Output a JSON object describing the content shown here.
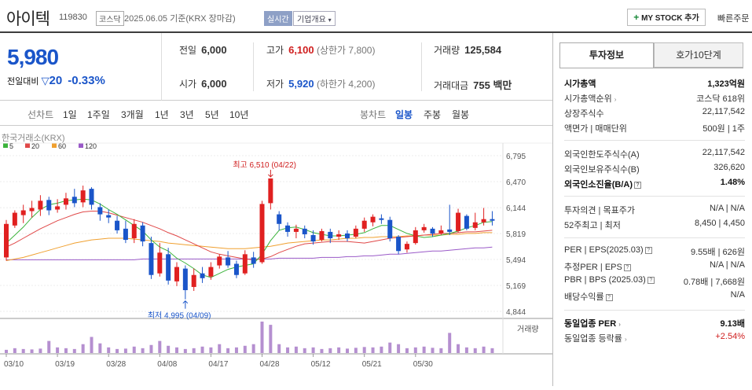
{
  "header": {
    "stock_name": "아이텍",
    "stock_code": "119830",
    "market": "코스닥",
    "date_text": "2025.06.05 기준(KRX 장마감)",
    "realtime_label": "실시간",
    "company_overview": "기업개요",
    "my_stock_button": "MY STOCK 추가",
    "quick_order": "빠른주문"
  },
  "price": {
    "current": "5,980",
    "change_label": "전일대비",
    "change_value": "20",
    "change_rate": "-0.33%"
  },
  "summary": {
    "prev_label": "전일",
    "prev_value": "6,000",
    "high_label": "고가",
    "high_value": "6,100",
    "upper_limit": "(상한가 7,800)",
    "volume_label": "거래량",
    "volume_value": "125,584",
    "open_label": "시가",
    "open_value": "6,000",
    "low_label": "저가",
    "low_value": "5,920",
    "lower_limit": "(하한가 4,200)",
    "amount_label": "거래대금",
    "amount_value": "755 백만"
  },
  "chart_tabs": {
    "line_label": "선차트",
    "line_periods": [
      "1일",
      "1주일",
      "3개월",
      "1년",
      "3년",
      "5년",
      "10년"
    ],
    "candle_label": "봉차트",
    "candle_periods": [
      "일봉",
      "주봉",
      "월봉"
    ],
    "selected": "일봉"
  },
  "chart_data": {
    "type": "candlestick",
    "exchange_label": "한국거래소(KRX)",
    "legend": [
      {
        "name": "5",
        "color": "#3bb33b"
      },
      {
        "name": "20",
        "color": "#e04848"
      },
      {
        "name": "60",
        "color": "#f0a030"
      },
      {
        "name": "120",
        "color": "#9a5ac8"
      }
    ],
    "y_ticks": [
      "6,795",
      "6,470",
      "6,144",
      "5,819",
      "5,494",
      "5,169",
      "4,844"
    ],
    "y_range": [
      4844,
      6795
    ],
    "x_labels": [
      "03/10",
      "03/19",
      "03/28",
      "04/08",
      "04/17",
      "04/28",
      "05/12",
      "05/21",
      "05/30"
    ],
    "x_label_index": [
      0,
      6,
      12,
      18,
      24,
      30,
      36,
      42,
      48
    ],
    "high_annotation": "최고 6,510 (04/22)",
    "low_annotation": "최저 4,995 (04/09)",
    "volume_label": "거래량",
    "candles": [
      [
        5520,
        5940,
        5480,
        5990
      ],
      [
        5920,
        6080,
        5890,
        6110
      ],
      [
        6050,
        6110,
        5950,
        6180
      ],
      [
        6100,
        6140,
        6020,
        6230
      ],
      [
        6120,
        6230,
        6040,
        6300
      ],
      [
        6240,
        6110,
        6050,
        6280
      ],
      [
        6120,
        6160,
        6080,
        6250
      ],
      [
        6180,
        6260,
        6120,
        6330
      ],
      [
        6280,
        6200,
        6150,
        6380
      ],
      [
        6210,
        6360,
        6150,
        6420
      ],
      [
        6380,
        6180,
        6120,
        6400
      ],
      [
        6150,
        6060,
        5980,
        6200
      ],
      [
        6050,
        6020,
        5950,
        6120
      ],
      [
        5980,
        5860,
        5820,
        6040
      ],
      [
        5880,
        5740,
        5700,
        5980
      ],
      [
        5760,
        5940,
        5700,
        6000
      ],
      [
        5920,
        5720,
        5660,
        5960
      ],
      [
        5700,
        5300,
        5250,
        5780
      ],
      [
        5320,
        5580,
        5280,
        5700
      ],
      [
        5560,
        5230,
        5180,
        5640
      ],
      [
        5220,
        5400,
        5160,
        5460
      ],
      [
        5380,
        5110,
        4995,
        5420
      ],
      [
        5150,
        5300,
        5100,
        5380
      ],
      [
        5320,
        5260,
        5200,
        5400
      ],
      [
        5280,
        5400,
        5240,
        5460
      ],
      [
        5420,
        5530,
        5380,
        5560
      ],
      [
        5520,
        5420,
        5390,
        5600
      ],
      [
        5440,
        5300,
        5260,
        5480
      ],
      [
        5320,
        5560,
        5300,
        5610
      ],
      [
        5520,
        5440,
        5390,
        5590
      ],
      [
        5460,
        6190,
        5440,
        6230
      ],
      [
        6200,
        6510,
        6120,
        6510
      ],
      [
        6060,
        5940,
        5860,
        6100
      ],
      [
        5920,
        5840,
        5780,
        5960
      ],
      [
        5840,
        5880,
        5760,
        5930
      ],
      [
        5880,
        5810,
        5760,
        5920
      ],
      [
        5800,
        5720,
        5680,
        5860
      ],
      [
        5740,
        5850,
        5720,
        5880
      ],
      [
        5840,
        5760,
        5700,
        5880
      ],
      [
        5780,
        5810,
        5740,
        5860
      ],
      [
        5820,
        5760,
        5720,
        5860
      ],
      [
        5780,
        5880,
        5760,
        5920
      ],
      [
        5880,
        5980,
        5840,
        6020
      ],
      [
        5960,
        6030,
        5910,
        6060
      ],
      [
        6010,
        5990,
        5940,
        6060
      ],
      [
        5990,
        5760,
        5720,
        6030
      ],
      [
        5780,
        5600,
        5560,
        5800
      ],
      [
        5620,
        5690,
        5580,
        5720
      ],
      [
        5700,
        5860,
        5680,
        5900
      ],
      [
        5860,
        5900,
        5830,
        5940
      ],
      [
        5880,
        5820,
        5780,
        5900
      ],
      [
        5820,
        5860,
        5800,
        5920
      ],
      [
        5870,
        5840,
        5800,
        6180
      ],
      [
        5850,
        6080,
        5830,
        6130
      ],
      [
        6040,
        5880,
        5860,
        6060
      ],
      [
        5890,
        5960,
        5860,
        6080
      ],
      [
        5960,
        6000,
        5920,
        6140
      ],
      [
        6000,
        5980,
        5920,
        6100
      ]
    ],
    "volumes": [
      8,
      12,
      10,
      9,
      11,
      30,
      14,
      12,
      10,
      22,
      40,
      24,
      14,
      10,
      11,
      16,
      12,
      20,
      30,
      18,
      14,
      10,
      12,
      16,
      14,
      22,
      12,
      14,
      18,
      22,
      78,
      70,
      22,
      14,
      16,
      12,
      14,
      10,
      12,
      14,
      11,
      13,
      15,
      14,
      16,
      26,
      22,
      12,
      14,
      16,
      13,
      12,
      50,
      22,
      14,
      12,
      16,
      12
    ],
    "ma5": [
      5700,
      5800,
      5900,
      6020,
      6120,
      6180,
      6200,
      6230,
      6240,
      6250,
      6240,
      6190,
      6120,
      6060,
      5990,
      5920,
      5850,
      5740,
      5650,
      5600,
      5510,
      5450,
      5380,
      5300,
      5270,
      5320,
      5370,
      5400,
      5420,
      5440,
      5560,
      5730,
      5860,
      5890,
      5900,
      5870,
      5830,
      5810,
      5790,
      5790,
      5800,
      5810,
      5830,
      5880,
      5920,
      5920,
      5870,
      5820,
      5790,
      5770,
      5780,
      5800,
      5820,
      5850,
      5890,
      5920,
      5960,
      5970
    ],
    "ma20": [
      5650,
      5700,
      5760,
      5820,
      5880,
      5930,
      5980,
      6020,
      6060,
      6090,
      6100,
      6100,
      6080,
      6050,
      6020,
      5990,
      5960,
      5920,
      5880,
      5830,
      5790,
      5740,
      5690,
      5640,
      5590,
      5560,
      5540,
      5520,
      5500,
      5490,
      5500,
      5530,
      5580,
      5620,
      5660,
      5690,
      5700,
      5710,
      5720,
      5720,
      5720,
      5710,
      5700,
      5720,
      5740,
      5760,
      5770,
      5780,
      5790,
      5800,
      5810,
      5820,
      5820,
      5830,
      5840,
      5840,
      5850,
      5860
    ],
    "ma60": [
      5480,
      5500,
      5520,
      5550,
      5580,
      5610,
      5640,
      5670,
      5700,
      5720,
      5740,
      5750,
      5760,
      5760,
      5760,
      5750,
      5740,
      5730,
      5720,
      5700,
      5690,
      5680,
      5670,
      5660,
      5650,
      5640,
      5630,
      5630,
      5630,
      5640,
      5650,
      5660,
      5680,
      5700,
      5710,
      5720,
      5730,
      5740,
      5740,
      5750,
      5760,
      5760,
      5770,
      5770,
      5780,
      5780,
      5780,
      5790,
      5790,
      5800,
      5800,
      5800,
      5810,
      5810,
      5820,
      5820,
      5830,
      5830
    ],
    "ma120": [
      5490,
      5490,
      5490,
      5490,
      5490,
      5490,
      5490,
      5490,
      5490,
      5490,
      5490,
      5490,
      5490,
      5490,
      5490,
      5490,
      5500,
      5500,
      5500,
      5500,
      5500,
      5500,
      5500,
      5500,
      5500,
      5500,
      5500,
      5500,
      5500,
      5500,
      5500,
      5500,
      5510,
      5510,
      5510,
      5510,
      5510,
      5520,
      5520,
      5520,
      5530,
      5530,
      5540,
      5540,
      5550,
      5560,
      5560,
      5570,
      5580,
      5590,
      5600,
      5600,
      5610,
      5620,
      5630,
      5640,
      5640,
      5650
    ]
  },
  "right_panel": {
    "tab_invest": "투자정보",
    "tab_hoga": "호가10단계",
    "market_cap_label": "시가총액",
    "market_cap_value": "1,323억원",
    "cap_rank_label": "시가총액순위",
    "cap_rank_value": "코스닥 618위",
    "shares_label": "상장주식수",
    "shares_value": "22,117,542",
    "par_label": "액면가",
    "par_sep": "매매단위",
    "par_value": "500원",
    "unit_value": "1주",
    "foreign_limit_label": "외국인한도주식수(A)",
    "foreign_limit_value": "22,117,542",
    "foreign_hold_label": "외국인보유주식수(B)",
    "foreign_hold_value": "326,620",
    "foreign_rate_label": "외국인소진율(B/A)",
    "foreign_rate_value": "1.48%",
    "opinion_label": "투자의견",
    "target_label": "목표주가",
    "opinion_value": "N/A",
    "target_value": "N/A",
    "wk52_label": "52주최고",
    "wk52_low_label": "최저",
    "wk52_high": "8,450",
    "wk52_low": "4,450",
    "per_label": "PER",
    "eps_label": "EPS(2025.03)",
    "per_value": "9.55배",
    "eps_value": "626원",
    "eper_label": "추정PER",
    "eeps_label": "EPS",
    "eper_value": "N/A",
    "eeps_value": "N/A",
    "pbr_label": "PBR",
    "bps_label": "BPS (2025.03)",
    "pbr_value": "0.78배",
    "bps_value": "7,668원",
    "div_label": "배당수익률",
    "div_value": "N/A",
    "ind_per_label": "동일업종 PER",
    "ind_per_value": "9.13배",
    "ind_rate_label": "동일업종 등락률",
    "ind_rate_value": "+2.54%"
  }
}
